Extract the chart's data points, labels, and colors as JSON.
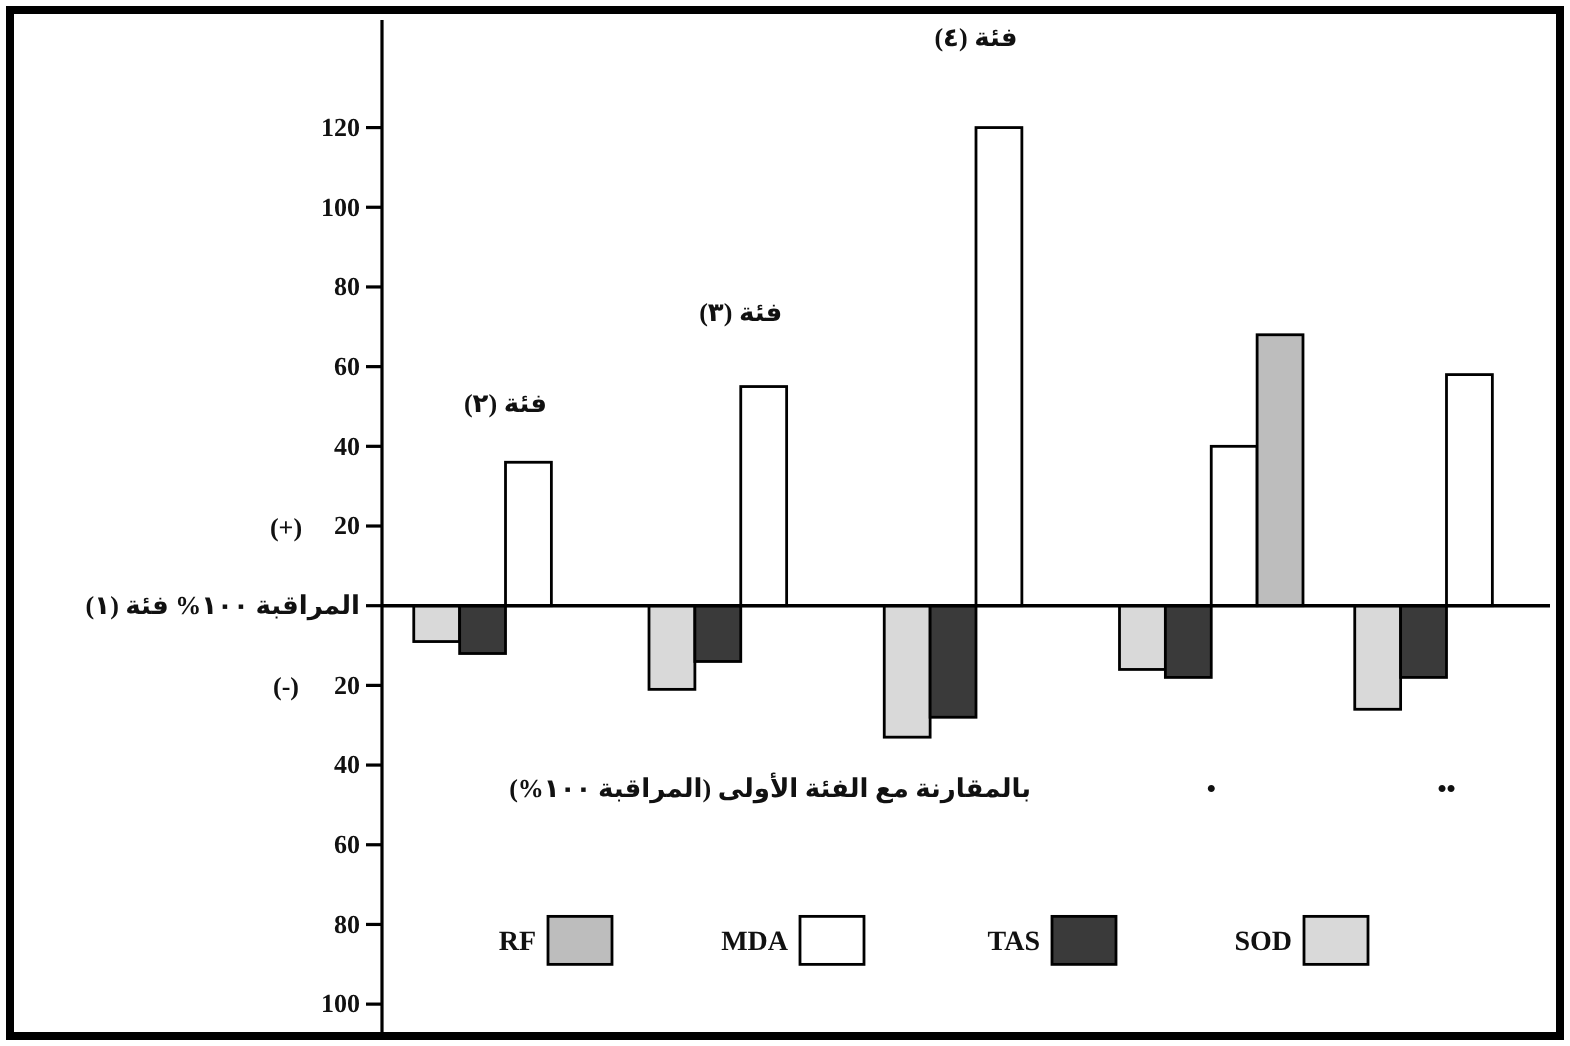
{
  "chart_data": {
    "type": "bar",
    "categories": [
      "فئة (٢)",
      "فئة (٣)",
      "فئة (٤)",
      "•",
      "••"
    ],
    "series": [
      {
        "name": "SOD",
        "color": "#d9d9d9",
        "values": [
          -9,
          -21,
          -33,
          -16,
          -26
        ]
      },
      {
        "name": "TAS",
        "color": "#3a3a3a",
        "values": [
          -12,
          -14,
          -28,
          -18,
          -18
        ]
      },
      {
        "name": "MDA",
        "color": "#ffffff",
        "values": [
          36,
          55,
          120,
          40,
          58
        ]
      },
      {
        "name": "RF",
        "color": "#bdbdbd",
        "values": [
          null,
          null,
          null,
          68,
          null
        ]
      }
    ],
    "ylim": [
      -108,
      147
    ],
    "yticks": [
      120,
      100,
      80,
      60,
      40,
      20,
      {
        "value": 0,
        "label": "المراقبة ١٠٠% فئة (١)"
      },
      {
        "value": -20,
        "label": "20"
      },
      {
        "value": -40,
        "label": "40"
      },
      {
        "value": -60,
        "label": "60"
      },
      {
        "value": -80,
        "label": "80"
      },
      {
        "value": -100,
        "label": "100"
      }
    ],
    "annotations": [
      "(+)",
      "(-)",
      "بالمقارنة مع الفئة الأولى (المراقبة ١٠٠%)"
    ],
    "legend": "bottom"
  }
}
